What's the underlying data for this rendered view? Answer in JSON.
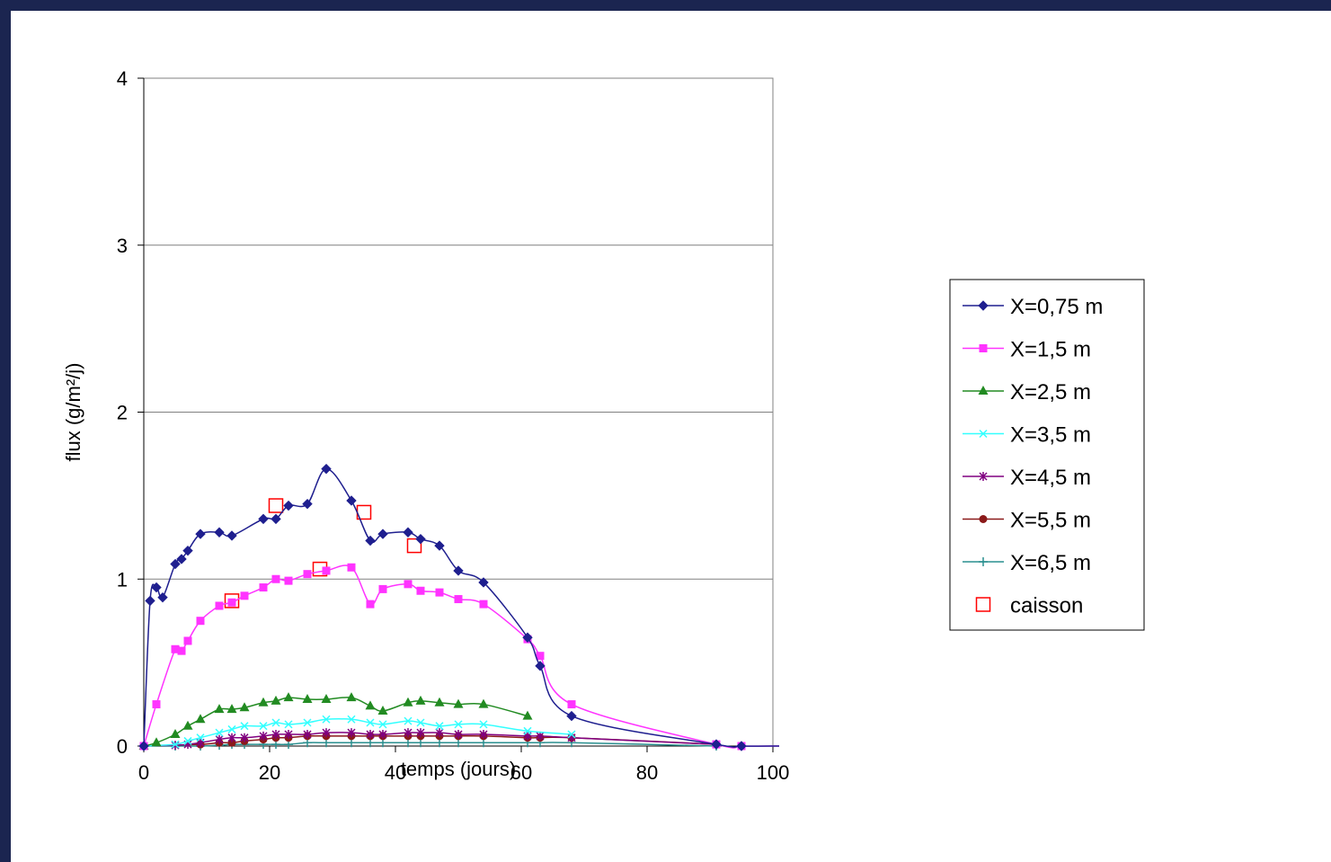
{
  "colors": {
    "frame": "#1b2550",
    "background": "#ffffff",
    "grid": "#808080",
    "axis": "#000000"
  },
  "chart_data": {
    "type": "line",
    "title": "",
    "xlabel": "temps (jours)",
    "ylabel": "flux (g/m²/j)",
    "xlim": [
      0,
      100
    ],
    "ylim": [
      0,
      4
    ],
    "xticks": [
      0,
      20,
      40,
      60,
      80,
      100
    ],
    "yticks": [
      0,
      1,
      2,
      3,
      4
    ],
    "grid": "horizontal",
    "legend_position": "right",
    "series": [
      {
        "name": "X=0,75 m",
        "color": "#1f1f8f",
        "marker": "diamond",
        "smooth": true,
        "x": [
          0,
          1,
          2,
          3,
          5,
          6,
          7,
          9,
          12,
          14,
          19,
          21,
          23,
          26,
          29,
          33,
          36,
          38,
          42,
          44,
          47,
          50,
          54,
          61,
          63,
          68,
          91,
          95,
          101
        ],
        "y": [
          0,
          0.87,
          0.95,
          0.89,
          1.09,
          1.12,
          1.17,
          1.27,
          1.28,
          1.26,
          1.36,
          1.36,
          1.44,
          1.45,
          1.66,
          1.47,
          1.23,
          1.27,
          1.28,
          1.24,
          1.2,
          1.05,
          0.98,
          0.65,
          0.48,
          0.18,
          0.01,
          0,
          0
        ]
      },
      {
        "name": "X=1,5 m",
        "color": "#ff33ff",
        "marker": "square",
        "smooth": true,
        "x": [
          0,
          2,
          5,
          6,
          7,
          9,
          12,
          14,
          16,
          19,
          21,
          23,
          26,
          29,
          33,
          36,
          38,
          42,
          44,
          47,
          50,
          54,
          61,
          63,
          68,
          91,
          95,
          101
        ],
        "y": [
          0,
          0.25,
          0.58,
          0.57,
          0.63,
          0.75,
          0.84,
          0.86,
          0.9,
          0.95,
          1.0,
          0.99,
          1.03,
          1.05,
          1.07,
          0.85,
          0.94,
          0.97,
          0.93,
          0.92,
          0.88,
          0.85,
          0.64,
          0.54,
          0.25,
          0.01,
          0,
          0
        ]
      },
      {
        "name": "X=2,5 m",
        "color": "#228b22",
        "marker": "triangle",
        "smooth": true,
        "x": [
          0,
          2,
          5,
          7,
          9,
          12,
          14,
          16,
          19,
          21,
          23,
          26,
          29,
          33,
          36,
          38,
          42,
          44,
          47,
          50,
          54,
          61
        ],
        "y": [
          0,
          0.02,
          0.07,
          0.12,
          0.16,
          0.22,
          0.22,
          0.23,
          0.26,
          0.27,
          0.29,
          0.28,
          0.28,
          0.29,
          0.24,
          0.21,
          0.26,
          0.27,
          0.26,
          0.25,
          0.25,
          0.18
        ]
      },
      {
        "name": "X=3,5 m",
        "color": "#33ffff",
        "marker": "x",
        "smooth": true,
        "x": [
          0,
          5,
          7,
          9,
          12,
          14,
          16,
          19,
          21,
          23,
          26,
          29,
          33,
          36,
          38,
          42,
          44,
          47,
          50,
          54,
          61,
          68
        ],
        "y": [
          0,
          0.01,
          0.03,
          0.05,
          0.08,
          0.1,
          0.12,
          0.12,
          0.14,
          0.13,
          0.14,
          0.16,
          0.16,
          0.14,
          0.13,
          0.15,
          0.14,
          0.12,
          0.13,
          0.13,
          0.09,
          0.07
        ]
      },
      {
        "name": "X=4,5 m",
        "color": "#800080",
        "marker": "star",
        "smooth": true,
        "x": [
          0,
          5,
          7,
          9,
          12,
          14,
          16,
          19,
          21,
          23,
          26,
          29,
          33,
          36,
          38,
          42,
          44,
          47,
          50,
          54,
          61,
          63,
          68,
          91
        ],
        "y": [
          0,
          0.005,
          0.01,
          0.02,
          0.04,
          0.05,
          0.05,
          0.06,
          0.07,
          0.07,
          0.07,
          0.08,
          0.08,
          0.07,
          0.07,
          0.08,
          0.08,
          0.08,
          0.07,
          0.07,
          0.06,
          0.06,
          0.05,
          0.01
        ]
      },
      {
        "name": "X=5,5 m",
        "color": "#8b1a1a",
        "marker": "circle",
        "smooth": true,
        "x": [
          0,
          9,
          12,
          14,
          16,
          19,
          21,
          23,
          26,
          29,
          33,
          36,
          38,
          42,
          44,
          47,
          50,
          54,
          61,
          63,
          68,
          91
        ],
        "y": [
          0,
          0.01,
          0.02,
          0.02,
          0.03,
          0.04,
          0.05,
          0.05,
          0.06,
          0.06,
          0.06,
          0.06,
          0.06,
          0.06,
          0.06,
          0.06,
          0.06,
          0.06,
          0.05,
          0.05,
          0.05,
          0.01
        ]
      },
      {
        "name": "X=6,5 m",
        "color": "#2a8f8f",
        "marker": "plus",
        "smooth": true,
        "x": [
          0,
          5,
          9,
          12,
          14,
          16,
          19,
          21,
          23,
          26,
          29,
          33,
          36,
          38,
          42,
          44,
          47,
          50,
          54,
          61,
          63,
          68,
          91
        ],
        "y": [
          0,
          0,
          0,
          0.005,
          0.01,
          0.01,
          0.01,
          0.01,
          0.01,
          0.02,
          0.02,
          0.02,
          0.02,
          0.02,
          0.02,
          0.02,
          0.02,
          0.02,
          0.02,
          0.02,
          0.02,
          0.02,
          0
        ]
      },
      {
        "name": "caisson",
        "color": "#ff0000",
        "marker": "open-square",
        "line": false,
        "x": [
          14,
          21,
          28,
          35,
          43
        ],
        "y": [
          0.87,
          1.44,
          1.06,
          1.4,
          1.2
        ]
      }
    ]
  }
}
